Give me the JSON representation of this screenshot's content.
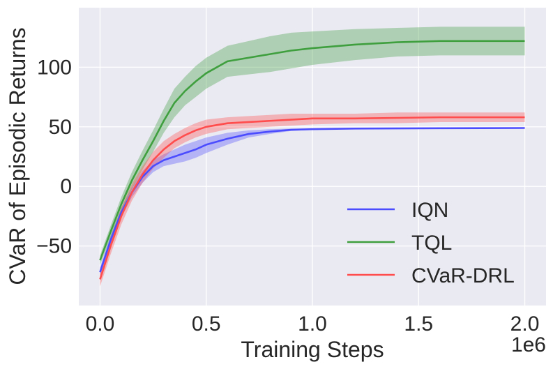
{
  "chart_data": {
    "type": "line",
    "xlabel": "Training Steps",
    "ylabel": "CVaR of Episodic Returns",
    "x_offset_label": "1e6",
    "xlim": [
      -0.1,
      2.1
    ],
    "ylim": [
      -100,
      150
    ],
    "xticks": [
      0.0,
      0.5,
      1.0,
      1.5,
      2.0
    ],
    "xtick_labels": [
      "0.0",
      "0.5",
      "1.0",
      "1.5",
      "2.0"
    ],
    "yticks": [
      -50,
      0,
      50,
      100
    ],
    "ytick_labels": [
      "−50",
      "0",
      "50",
      "100"
    ],
    "grid": true,
    "legend_position": "lower-right",
    "x": [
      0.0,
      0.05,
      0.1,
      0.15,
      0.2,
      0.25,
      0.3,
      0.35,
      0.4,
      0.45,
      0.5,
      0.6,
      0.7,
      0.8,
      0.9,
      1.0,
      1.2,
      1.4,
      1.6,
      1.8,
      2.0
    ],
    "series": [
      {
        "name": "IQN",
        "color": "#4c4cff",
        "values": [
          -72,
          -45,
          -22,
          -5,
          8,
          17,
          22,
          25,
          28,
          31,
          35,
          40,
          44,
          46,
          47.5,
          48,
          48.5,
          48.7,
          48.8,
          48.9,
          49
        ],
        "upper": [
          -68,
          -41,
          -18,
          -1,
          13,
          22,
          27,
          31,
          35,
          38,
          41,
          45,
          47,
          48,
          48.5,
          48.6,
          48.8,
          48.9,
          49,
          49,
          49
        ],
        "lower": [
          -76,
          -49,
          -26,
          -9,
          3,
          12,
          17,
          19,
          21,
          24,
          28,
          35,
          41,
          44,
          46.5,
          47.4,
          48.2,
          48.5,
          48.6,
          48.8,
          48.9
        ]
      },
      {
        "name": "TQL",
        "color": "#3f9f3f",
        "values": [
          -62,
          -38,
          -15,
          5,
          22,
          38,
          55,
          70,
          80,
          88,
          95,
          105,
          108,
          111,
          114,
          116,
          119,
          121,
          122,
          122,
          122
        ],
        "upper": [
          -58,
          -33,
          -9,
          12,
          30,
          47,
          65,
          82,
          92,
          101,
          108,
          118,
          122,
          126,
          129,
          130,
          132,
          133,
          134,
          134,
          134
        ],
        "lower": [
          -66,
          -43,
          -21,
          -2,
          14,
          29,
          45,
          58,
          68,
          75,
          82,
          92,
          94,
          96,
          99,
          102,
          106,
          109,
          110,
          110,
          110
        ]
      },
      {
        "name": "CVaR-DRL",
        "color": "#ff4c4c",
        "values": [
          -78,
          -50,
          -25,
          -5,
          10,
          22,
          31,
          38,
          43,
          47,
          50,
          53,
          54,
          55,
          56,
          57,
          57,
          57.5,
          58,
          58,
          58
        ],
        "upper": [
          -72,
          -43,
          -18,
          2,
          17,
          29,
          38,
          44,
          49,
          53,
          56,
          58,
          59,
          60,
          61,
          61,
          61,
          62,
          62,
          62,
          62
        ],
        "lower": [
          -84,
          -57,
          -32,
          -12,
          3,
          15,
          24,
          32,
          37,
          41,
          44,
          48,
          49,
          50,
          51,
          52,
          53,
          53,
          54,
          54,
          54
        ]
      }
    ]
  }
}
